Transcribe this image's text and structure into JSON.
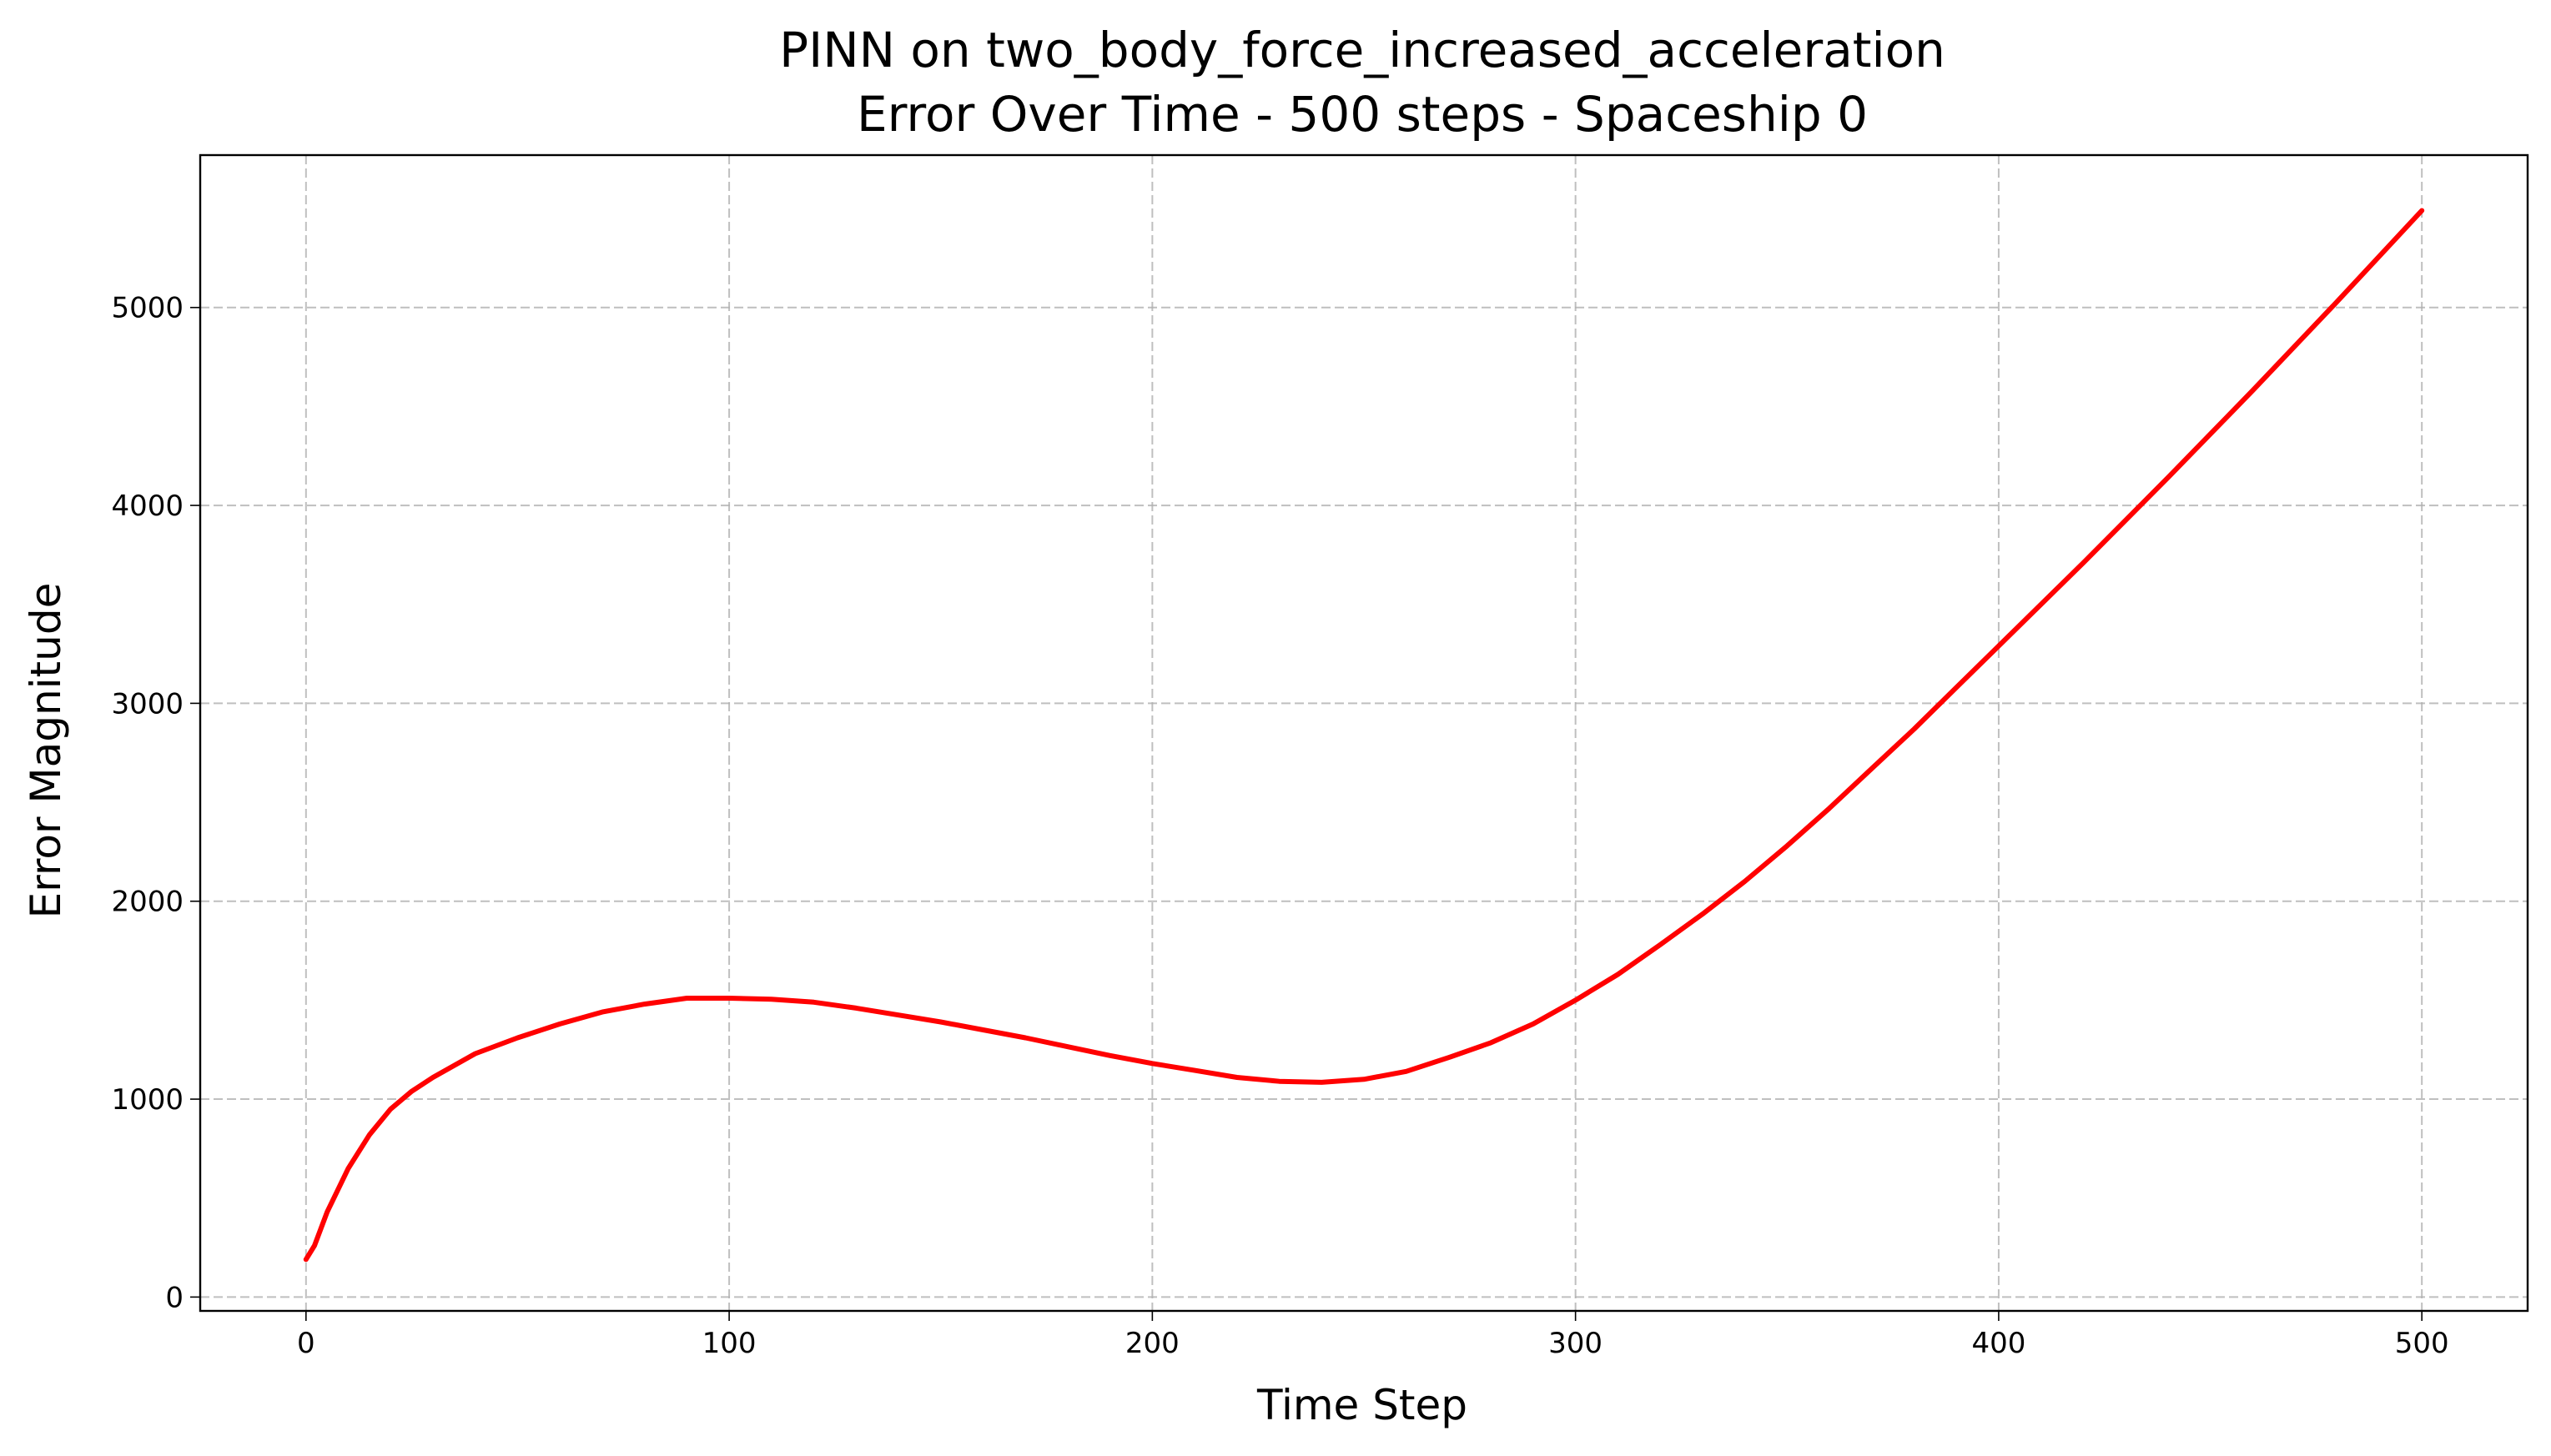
{
  "chart_data": {
    "type": "line",
    "title": "PINN on two_body_force_increased_acceleration",
    "subtitle": "Error Over Time - 500 steps - Spaceship 0",
    "xlabel": "Time Step",
    "ylabel": "Error Magnitude",
    "xlim": [
      -25,
      525
    ],
    "ylim": [
      -70,
      5770
    ],
    "xticks": [
      0,
      100,
      200,
      300,
      400,
      500
    ],
    "yticks": [
      0,
      1000,
      2000,
      3000,
      4000,
      5000
    ],
    "xtick_labels": [
      "0",
      "100",
      "200",
      "300",
      "400",
      "500"
    ],
    "ytick_labels": [
      "0",
      "1000",
      "2000",
      "3000",
      "4000",
      "5000"
    ],
    "grid": true,
    "series": [
      {
        "color": "#ff0000",
        "x": [
          0,
          2,
          5,
          10,
          15,
          20,
          25,
          30,
          40,
          50,
          60,
          70,
          80,
          90,
          100,
          110,
          120,
          130,
          140,
          150,
          160,
          170,
          180,
          190,
          200,
          210,
          220,
          230,
          240,
          250,
          260,
          270,
          280,
          290,
          300,
          310,
          320,
          330,
          340,
          350,
          360,
          370,
          380,
          390,
          400,
          420,
          440,
          460,
          480,
          500
        ],
        "y": [
          190,
          260,
          430,
          650,
          820,
          950,
          1040,
          1110,
          1230,
          1310,
          1380,
          1440,
          1480,
          1510,
          1510,
          1505,
          1490,
          1460,
          1425,
          1390,
          1350,
          1310,
          1265,
          1220,
          1180,
          1145,
          1110,
          1090,
          1085,
          1100,
          1140,
          1210,
          1285,
          1380,
          1500,
          1630,
          1780,
          1935,
          2100,
          2280,
          2470,
          2670,
          2870,
          3080,
          3290,
          3710,
          4140,
          4580,
          5030,
          5490
        ]
      }
    ]
  }
}
